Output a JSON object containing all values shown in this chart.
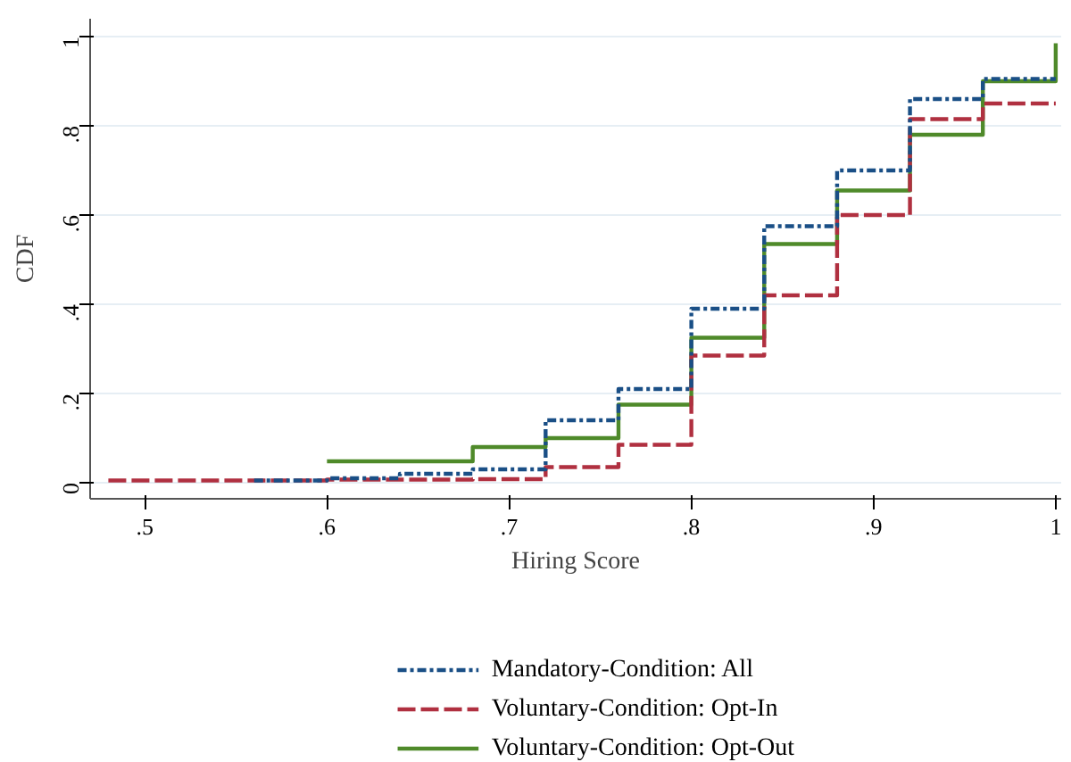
{
  "chart_data": {
    "type": "step",
    "xlabel": "Hiring Score",
    "ylabel": "CDF",
    "xlim": [
      0.47,
      1.003
    ],
    "ylim": [
      -0.036,
      1.04
    ],
    "xticks": [
      {
        "value": 0.5,
        "label": ".5"
      },
      {
        "value": 0.6,
        "label": ".6"
      },
      {
        "value": 0.7,
        "label": ".7"
      },
      {
        "value": 0.8,
        "label": ".8"
      },
      {
        "value": 0.9,
        "label": ".9"
      },
      1
    ],
    "yticks": [
      0,
      {
        "value": 0.2,
        "label": ".2"
      },
      {
        "value": 0.4,
        "label": ".4"
      },
      {
        "value": 0.6,
        "label": ".6"
      },
      {
        "value": 0.8,
        "label": ".8"
      },
      1
    ],
    "grid": "y",
    "legend": "bottom",
    "series": [
      {
        "name": "Mandatory-Condition: All",
        "color": "#1a4f86",
        "line_style": "dashdot",
        "x": [
          0.56,
          0.6,
          0.64,
          0.68,
          0.72,
          0.76,
          0.8,
          0.84,
          0.88,
          0.92,
          0.96,
          1.0
        ],
        "values": [
          0.005,
          0.01,
          0.02,
          0.03,
          0.14,
          0.21,
          0.39,
          0.575,
          0.7,
          0.86,
          0.905,
          0.905
        ]
      },
      {
        "name": "Voluntary-Condition: Opt-In",
        "color": "#b03040",
        "line_style": "dashed",
        "x": [
          0.48,
          0.6,
          0.68,
          0.72,
          0.76,
          0.8,
          0.84,
          0.88,
          0.92,
          0.96,
          1.0
        ],
        "values": [
          0.005,
          0.007,
          0.008,
          0.035,
          0.085,
          0.285,
          0.42,
          0.6,
          0.815,
          0.85,
          0.85
        ]
      },
      {
        "name": "Voluntary-Condition: Opt-Out",
        "color": "#4f8a2a",
        "line_style": "solid",
        "x": [
          0.6,
          0.68,
          0.72,
          0.76,
          0.8,
          0.84,
          0.88,
          0.92,
          0.96,
          1.0
        ],
        "values": [
          0.048,
          0.08,
          0.1,
          0.175,
          0.325,
          0.535,
          0.655,
          0.78,
          0.9,
          0.985
        ]
      }
    ]
  }
}
